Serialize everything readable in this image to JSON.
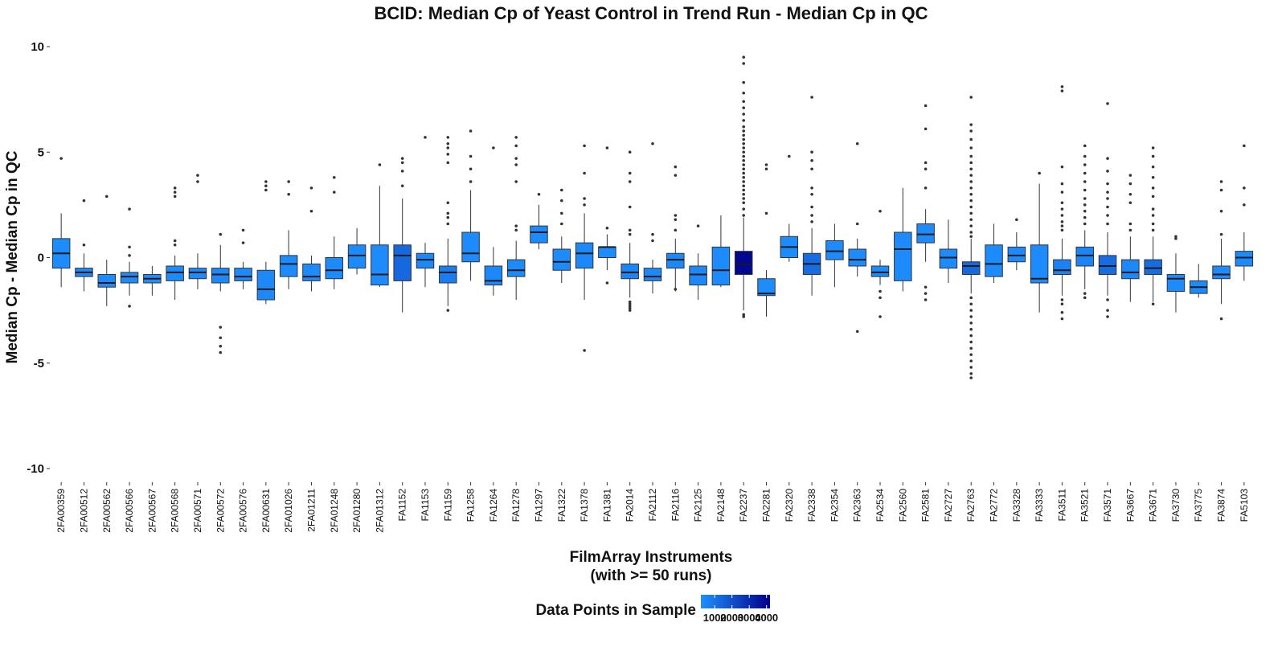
{
  "chart_data": {
    "type": "box",
    "title": "BCID: Median Cp of Yeast Control in Trend Run - Median Cp in QC",
    "xlabel_line1": "FilmArray Instruments",
    "xlabel_line2": "(with >= 50 runs)",
    "ylabel": "Median Cp - Median Cp in QC",
    "ylim": [
      -10,
      10
    ],
    "yticks": [
      -10,
      -5,
      0,
      5,
      10
    ],
    "ytick_labels": [
      "-10",
      "-5",
      "0",
      "5",
      "10"
    ],
    "grid": false,
    "legend": {
      "title": "Data Points in Sample",
      "position": "bottom",
      "tick_values": [
        1000,
        2000,
        3000,
        4000
      ],
      "tick_labels": [
        "1000",
        "2000",
        "3000",
        "4000"
      ],
      "min": 200,
      "max": 4200,
      "color_low": "#1E90FF",
      "color_high": "#00008B"
    },
    "box_outline_color": "#333333",
    "categories": [
      "2FA00359",
      "2FA00512",
      "2FA00562",
      "2FA00566",
      "2FA00567",
      "2FA00568",
      "2FA00571",
      "2FA00572",
      "2FA00576",
      "2FA00631",
      "2FA01026",
      "2FA01211",
      "2FA01248",
      "2FA01280",
      "2FA01312",
      "FA1152",
      "FA1153",
      "FA1159",
      "FA1258",
      "FA1264",
      "FA1278",
      "FA1297",
      "FA1322",
      "FA1378",
      "FA1381",
      "FA2014",
      "FA2112",
      "FA2116",
      "FA2125",
      "FA2148",
      "FA2237",
      "FA2281",
      "FA2320",
      "FA2338",
      "FA2354",
      "FA2363",
      "FA2534",
      "FA2560",
      "FA2581",
      "FA2727",
      "FA2763",
      "FA2772",
      "FA3328",
      "FA3333",
      "FA3511",
      "FA3521",
      "FA3571",
      "FA3667",
      "FA3671",
      "FA3730",
      "FA3775",
      "FA3874",
      "FA5103"
    ],
    "boxes": [
      {
        "q1": -0.5,
        "median": 0.2,
        "q3": 0.9,
        "lo": -1.4,
        "hi": 2.1,
        "outliers": [
          4.7
        ],
        "n": 300
      },
      {
        "q1": -0.9,
        "median": -0.7,
        "q3": -0.5,
        "lo": -1.6,
        "hi": 0.2,
        "outliers": [
          0.6,
          2.7
        ],
        "n": 400
      },
      {
        "q1": -1.4,
        "median": -1.2,
        "q3": -0.8,
        "lo": -2.3,
        "hi": -0.1,
        "outliers": [
          2.9
        ],
        "n": 350
      },
      {
        "q1": -1.2,
        "median": -0.9,
        "q3": -0.7,
        "lo": -1.8,
        "hi": -0.2,
        "outliers": [
          0.1,
          0.5,
          2.3,
          -2.3
        ],
        "n": 350
      },
      {
        "q1": -1.2,
        "median": -1.0,
        "q3": -0.8,
        "lo": -1.8,
        "hi": -0.4,
        "outliers": [],
        "n": 250
      },
      {
        "q1": -1.1,
        "median": -0.7,
        "q3": -0.4,
        "lo": -2.0,
        "hi": 0.1,
        "outliers": [
          0.6,
          0.8,
          2.9,
          3.1,
          3.3
        ],
        "n": 350
      },
      {
        "q1": -1.0,
        "median": -0.7,
        "q3": -0.5,
        "lo": -1.5,
        "hi": 0.2,
        "outliers": [
          3.6,
          3.9
        ],
        "n": 350
      },
      {
        "q1": -1.2,
        "median": -0.8,
        "q3": -0.5,
        "lo": -1.6,
        "hi": 0.6,
        "outliers": [
          1.1,
          -3.3,
          -3.8,
          -4.2,
          -4.5
        ],
        "n": 400
      },
      {
        "q1": -1.1,
        "median": -0.9,
        "q3": -0.5,
        "lo": -1.5,
        "hi": -0.2,
        "outliers": [
          0.7,
          1.3
        ],
        "n": 350
      },
      {
        "q1": -2.0,
        "median": -1.5,
        "q3": -0.6,
        "lo": -2.2,
        "hi": -0.2,
        "outliers": [
          3.2,
          3.4,
          3.6
        ],
        "n": 400
      },
      {
        "q1": -0.9,
        "median": -0.3,
        "q3": 0.1,
        "lo": -1.5,
        "hi": 1.3,
        "outliers": [
          3.0,
          3.6
        ],
        "n": 350
      },
      {
        "q1": -1.1,
        "median": -0.9,
        "q3": -0.3,
        "lo": -1.6,
        "hi": 0.1,
        "outliers": [
          2.2,
          3.3
        ],
        "n": 350
      },
      {
        "q1": -1.0,
        "median": -0.6,
        "q3": 0.0,
        "lo": -1.5,
        "hi": 1.0,
        "outliers": [
          3.1,
          3.8
        ],
        "n": 350
      },
      {
        "q1": -0.5,
        "median": 0.1,
        "q3": 0.6,
        "lo": -0.8,
        "hi": 1.4,
        "outliers": [],
        "n": 350
      },
      {
        "q1": -1.3,
        "median": -0.8,
        "q3": 0.6,
        "lo": -1.4,
        "hi": 3.4,
        "outliers": [
          4.4
        ],
        "n": 350
      },
      {
        "q1": -1.1,
        "median": 0.1,
        "q3": 0.6,
        "lo": -2.6,
        "hi": 2.8,
        "outliers": [
          3.4,
          4.1,
          4.5,
          4.7
        ],
        "n": 1300
      },
      {
        "q1": -0.5,
        "median": -0.1,
        "q3": 0.2,
        "lo": -1.4,
        "hi": 0.7,
        "outliers": [
          5.7
        ],
        "n": 400
      },
      {
        "q1": -1.2,
        "median": -0.7,
        "q3": -0.4,
        "lo": -2.3,
        "hi": 0.9,
        "outliers": [
          1.6,
          1.9,
          2.1,
          2.6,
          4.5,
          4.9,
          5.2,
          5.4,
          5.7,
          -2.5
        ],
        "n": 700
      },
      {
        "q1": -0.2,
        "median": 0.2,
        "q3": 1.2,
        "lo": -1.1,
        "hi": 3.2,
        "outliers": [
          3.6,
          4.2,
          4.8,
          6.0
        ],
        "n": 350
      },
      {
        "q1": -1.3,
        "median": -1.1,
        "q3": -0.4,
        "lo": -1.8,
        "hi": 0.5,
        "outliers": [
          5.2
        ],
        "n": 400
      },
      {
        "q1": -0.9,
        "median": -0.6,
        "q3": -0.1,
        "lo": -2.0,
        "hi": 0.8,
        "outliers": [
          1.3,
          1.5,
          3.6,
          4.4,
          4.7,
          5.3,
          5.7
        ],
        "n": 350
      },
      {
        "q1": 0.7,
        "median": 1.2,
        "q3": 1.5,
        "lo": 0.4,
        "hi": 2.5,
        "outliers": [
          3.0
        ],
        "n": 350
      },
      {
        "q1": -0.6,
        "median": -0.2,
        "q3": 0.4,
        "lo": -1.2,
        "hi": 1.0,
        "outliers": [
          1.6,
          2.1,
          2.7,
          3.2
        ],
        "n": 350
      },
      {
        "q1": -0.5,
        "median": 0.2,
        "q3": 0.7,
        "lo": -2.0,
        "hi": 2.1,
        "outliers": [
          2.5,
          2.8,
          4.0,
          5.3,
          -4.4
        ],
        "n": 400
      },
      {
        "q1": 0.0,
        "median": 0.5,
        "q3": 0.5,
        "lo": -0.6,
        "hi": 1.1,
        "outliers": [
          1.4,
          -1.2,
          5.2
        ],
        "n": 300
      },
      {
        "q1": -1.0,
        "median": -0.7,
        "q3": -0.3,
        "lo": -1.9,
        "hi": 0.7,
        "outliers": [
          1.1,
          1.3,
          2.4,
          3.6,
          4.0,
          5.0,
          -2.1,
          -2.2,
          -2.3,
          -2.4,
          -2.5
        ],
        "n": 500
      },
      {
        "q1": -1.1,
        "median": -0.9,
        "q3": -0.5,
        "lo": -1.7,
        "hi": -0.1,
        "outliers": [
          0.8,
          1.1,
          5.4
        ],
        "n": 400
      },
      {
        "q1": -0.5,
        "median": -0.1,
        "q3": 0.2,
        "lo": -1.6,
        "hi": 0.9,
        "outliers": [
          1.3,
          1.8,
          2.0,
          3.9,
          4.3,
          -1.5
        ],
        "n": 400
      },
      {
        "q1": -1.3,
        "median": -0.8,
        "q3": -0.4,
        "lo": -2.0,
        "hi": 0.2,
        "outliers": [
          1.5
        ],
        "n": 400
      },
      {
        "q1": -1.3,
        "median": -0.6,
        "q3": 0.5,
        "lo": -1.4,
        "hi": 2.0,
        "outliers": [],
        "n": 350
      },
      {
        "q1": -0.8,
        "median": -0.3,
        "q3": 0.3,
        "lo": -2.5,
        "hi": 1.9,
        "outliers": [
          2.0,
          2.3,
          2.6,
          2.8,
          3.0,
          3.2,
          3.4,
          3.6,
          3.8,
          4.0,
          4.2,
          4.4,
          4.6,
          4.8,
          5.0,
          5.2,
          5.4,
          5.6,
          5.8,
          6.0,
          6.2,
          6.5,
          6.8,
          7.1,
          7.4,
          7.8,
          8.3,
          9.2,
          9.5,
          -2.7,
          -2.8
        ],
        "n": 4000
      },
      {
        "q1": -1.8,
        "median": -1.7,
        "q3": -1.0,
        "lo": -2.8,
        "hi": -0.6,
        "outliers": [
          2.1,
          4.2,
          4.4
        ],
        "n": 300
      },
      {
        "q1": 0.0,
        "median": 0.5,
        "q3": 1.0,
        "lo": -0.2,
        "hi": 1.6,
        "outliers": [
          4.8
        ],
        "n": 350
      },
      {
        "q1": -0.8,
        "median": -0.3,
        "q3": 0.2,
        "lo": -1.8,
        "hi": 1.4,
        "outliers": [
          1.7,
          2.0,
          2.4,
          3.0,
          3.3,
          4.2,
          4.6,
          5.0,
          7.6
        ],
        "n": 1200
      },
      {
        "q1": -0.1,
        "median": 0.3,
        "q3": 0.8,
        "lo": -1.4,
        "hi": 1.6,
        "outliers": [],
        "n": 350
      },
      {
        "q1": -0.4,
        "median": -0.1,
        "q3": 0.4,
        "lo": -0.9,
        "hi": 0.9,
        "outliers": [
          1.6,
          -3.5,
          5.4
        ],
        "n": 350
      },
      {
        "q1": -0.9,
        "median": -0.7,
        "q3": -0.4,
        "lo": -1.3,
        "hi": -0.1,
        "outliers": [
          -1.6,
          -1.9,
          -2.8,
          2.2
        ],
        "n": 350
      },
      {
        "q1": -1.1,
        "median": 0.4,
        "q3": 1.2,
        "lo": -1.6,
        "hi": 3.3,
        "outliers": [],
        "n": 350
      },
      {
        "q1": 0.7,
        "median": 1.1,
        "q3": 1.6,
        "lo": -0.2,
        "hi": 2.3,
        "outliers": [
          3.3,
          4.2,
          4.5,
          6.1,
          7.2,
          -1.4,
          -1.7,
          -2.0
        ],
        "n": 350
      },
      {
        "q1": -0.5,
        "median": 0.0,
        "q3": 0.4,
        "lo": -1.2,
        "hi": 1.8,
        "outliers": [],
        "n": 350
      },
      {
        "q1": -0.8,
        "median": -0.4,
        "q3": -0.2,
        "lo": -1.7,
        "hi": 0.9,
        "outliers": [
          1.0,
          1.2,
          1.5,
          1.8,
          2.1,
          2.4,
          2.7,
          3.0,
          3.3,
          3.6,
          3.9,
          4.2,
          4.5,
          4.8,
          5.2,
          5.6,
          6.0,
          6.3,
          7.6,
          -1.9,
          -2.2,
          -2.5,
          -2.8,
          -3.1,
          -3.4,
          -3.7,
          -4.0,
          -4.3,
          -4.6,
          -4.9,
          -5.2,
          -5.5,
          -5.7
        ],
        "n": 1300
      },
      {
        "q1": -0.9,
        "median": -0.3,
        "q3": 0.6,
        "lo": -1.2,
        "hi": 1.6,
        "outliers": [],
        "n": 350
      },
      {
        "q1": -0.2,
        "median": 0.1,
        "q3": 0.5,
        "lo": -0.6,
        "hi": 1.2,
        "outliers": [
          1.8
        ],
        "n": 350
      },
      {
        "q1": -1.2,
        "median": -1.0,
        "q3": 0.6,
        "lo": -2.6,
        "hi": 3.5,
        "outliers": [
          4.0
        ],
        "n": 350
      },
      {
        "q1": -0.8,
        "median": -0.6,
        "q3": -0.1,
        "lo": -1.8,
        "hi": 0.9,
        "outliers": [
          1.3,
          1.5,
          1.7,
          2.0,
          2.3,
          2.6,
          3.1,
          3.5,
          4.3,
          7.9,
          8.1,
          -2.0,
          -2.2,
          -2.6,
          -2.9
        ],
        "n": 600
      },
      {
        "q1": -0.4,
        "median": 0.1,
        "q3": 0.5,
        "lo": -1.5,
        "hi": 1.3,
        "outliers": [
          1.6,
          1.9,
          2.2,
          2.5,
          2.8,
          3.2,
          3.6,
          4.0,
          4.4,
          4.8,
          5.3,
          -1.7,
          -1.9
        ],
        "n": 500
      },
      {
        "q1": -0.8,
        "median": -0.4,
        "q3": 0.1,
        "lo": -1.8,
        "hi": 1.2,
        "outliers": [
          1.6,
          2.0,
          2.4,
          2.8,
          3.1,
          3.5,
          4.1,
          4.7,
          7.3,
          -2.0,
          -2.5,
          -2.8
        ],
        "n": 1200
      },
      {
        "q1": -1.0,
        "median": -0.7,
        "q3": -0.1,
        "lo": -2.1,
        "hi": 1.0,
        "outliers": [
          1.3,
          1.6,
          2.6,
          3.0,
          3.5,
          3.9
        ],
        "n": 400
      },
      {
        "q1": -0.8,
        "median": -0.5,
        "q3": -0.1,
        "lo": -2.1,
        "hi": 1.0,
        "outliers": [
          1.3,
          1.6,
          2.0,
          2.3,
          2.9,
          3.3,
          3.8,
          4.3,
          4.8,
          5.2,
          -2.2
        ],
        "n": 1200
      },
      {
        "q1": -1.6,
        "median": -1.0,
        "q3": -0.8,
        "lo": -2.6,
        "hi": 0.2,
        "outliers": [
          0.9,
          1.0
        ],
        "n": 350
      },
      {
        "q1": -1.7,
        "median": -1.4,
        "q3": -1.1,
        "lo": -1.9,
        "hi": -0.3,
        "outliers": [],
        "n": 350
      },
      {
        "q1": -1.0,
        "median": -0.8,
        "q3": -0.4,
        "lo": -2.2,
        "hi": 0.9,
        "outliers": [
          1.1,
          2.2,
          3.2,
          3.6,
          -2.9
        ],
        "n": 350
      },
      {
        "q1": -0.4,
        "median": 0.0,
        "q3": 0.3,
        "lo": -1.1,
        "hi": 1.2,
        "outliers": [
          2.5,
          3.3,
          5.3
        ],
        "n": 350
      }
    ]
  }
}
